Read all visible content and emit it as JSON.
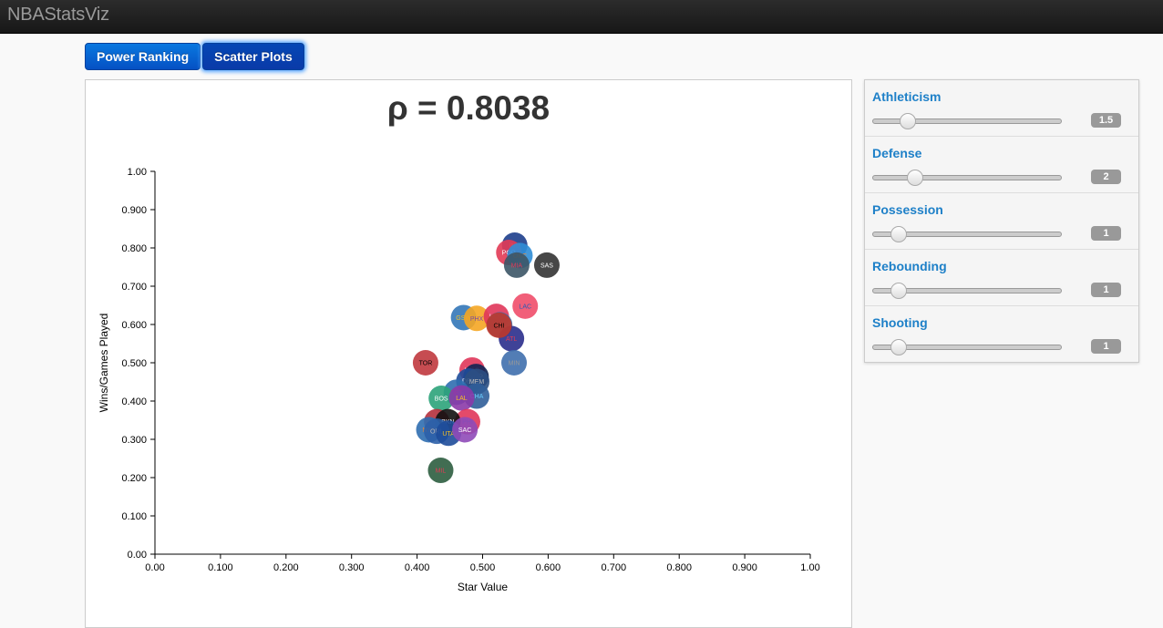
{
  "app": {
    "brand": "NBAStatsViz"
  },
  "tabs": [
    {
      "label": "Power Ranking",
      "active": false
    },
    {
      "label": "Scatter Plots",
      "active": true
    }
  ],
  "correlation_text": "ρ = 0.8038",
  "sliders": [
    {
      "label": "Athleticism",
      "value": "1.5",
      "fraction": 0.18
    },
    {
      "label": "Defense",
      "value": "2",
      "fraction": 0.22
    },
    {
      "label": "Possession",
      "value": "1",
      "fraction": 0.13
    },
    {
      "label": "Rebounding",
      "value": "1",
      "fraction": 0.13
    },
    {
      "label": "Shooting",
      "value": "1",
      "fraction": 0.13
    }
  ],
  "chart_data": {
    "type": "scatter",
    "xlabel": "Star Value",
    "ylabel": "Wins/Games Played",
    "xlim": [
      0,
      1
    ],
    "ylim": [
      0,
      1
    ],
    "x_ticks": [
      "0.00",
      "0.100",
      "0.200",
      "0.300",
      "0.400",
      "0.500",
      "0.600",
      "0.700",
      "0.800",
      "0.900",
      "1.00"
    ],
    "y_ticks": [
      "0.00",
      "0.100",
      "0.200",
      "0.300",
      "0.400",
      "0.500",
      "0.600",
      "0.700",
      "0.800",
      "0.900",
      "1.00"
    ],
    "points": [
      {
        "team": "IND",
        "x": 0.549,
        "y": 0.807,
        "color": "#1d3e8c",
        "text": "#f7c022"
      },
      {
        "team": "POR",
        "x": 0.54,
        "y": 0.788,
        "color": "#e23a55",
        "text": "#ffffff"
      },
      {
        "team": "OKC",
        "x": 0.557,
        "y": 0.78,
        "color": "#2f8dd6",
        "text": "#f58426"
      },
      {
        "team": "MIA",
        "x": 0.552,
        "y": 0.755,
        "color": "#3c5566",
        "text": "#e23a55"
      },
      {
        "team": "SAS",
        "x": 0.598,
        "y": 0.755,
        "color": "#333333",
        "text": "#ffffff"
      },
      {
        "team": "LAC",
        "x": 0.565,
        "y": 0.648,
        "color": "#ef4e6a",
        "text": "#2a5cb5"
      },
      {
        "team": "GSW",
        "x": 0.471,
        "y": 0.618,
        "color": "#3377b8",
        "text": "#f7c022"
      },
      {
        "team": "PHX",
        "x": 0.491,
        "y": 0.616,
        "color": "#f5a623",
        "text": "#7b4aa0"
      },
      {
        "team": "HOU",
        "x": 0.521,
        "y": 0.621,
        "color": "#e0365a",
        "text": "#ffffff"
      },
      {
        "team": "DAL",
        "x": 0.526,
        "y": 0.599,
        "color": "#2f6eb0",
        "text": "#bbbbbb"
      },
      {
        "team": "ATL",
        "x": 0.544,
        "y": 0.563,
        "color": "#2a2e8c",
        "text": "#e23a55"
      },
      {
        "team": "MIN",
        "x": 0.548,
        "y": 0.5,
        "color": "#3f6fad",
        "text": "#999999"
      },
      {
        "team": "TOR",
        "x": 0.413,
        "y": 0.5,
        "color": "#c0393e",
        "text": "#000000"
      },
      {
        "team": "WAS",
        "x": 0.484,
        "y": 0.481,
        "color": "#e0365a",
        "text": "#ffffff"
      },
      {
        "team": "NOP",
        "x": 0.49,
        "y": 0.464,
        "color": "#0f2453",
        "text": "#bbbbbb"
      },
      {
        "team": "DEN",
        "x": 0.479,
        "y": 0.452,
        "color": "#1e4d9a",
        "text": "#ffffff"
      },
      {
        "team": "MEM",
        "x": 0.491,
        "y": 0.451,
        "color": "#2c4f82",
        "text": "#bbbbbb"
      },
      {
        "team": "CHA",
        "x": 0.491,
        "y": 0.413,
        "color": "#305e99",
        "text": "#66ccff"
      },
      {
        "team": "DET",
        "x": 0.46,
        "y": 0.423,
        "color": "#2f6eb0",
        "text": "#e23a55"
      },
      {
        "team": "BOS",
        "x": 0.437,
        "y": 0.407,
        "color": "#2ca37a",
        "text": "#ffffff"
      },
      {
        "team": "LAL",
        "x": 0.468,
        "y": 0.408,
        "color": "#8b3aa8",
        "text": "#f7c022"
      },
      {
        "team": "PHI",
        "x": 0.477,
        "y": 0.346,
        "color": "#e0365a",
        "text": "#2a5cb5"
      },
      {
        "team": "CLE",
        "x": 0.43,
        "y": 0.346,
        "color": "#b5303d",
        "text": "#f7c022"
      },
      {
        "team": "BKN",
        "x": 0.447,
        "y": 0.346,
        "color": "#111111",
        "text": "#ffffff"
      },
      {
        "team": "NYK",
        "x": 0.418,
        "y": 0.325,
        "color": "#2f6eb0",
        "text": "#f58426"
      },
      {
        "team": "ORL",
        "x": 0.43,
        "y": 0.321,
        "color": "#2c5fa8",
        "text": "#bbbbbb"
      },
      {
        "team": "UTA",
        "x": 0.448,
        "y": 0.316,
        "color": "#1e4d9a",
        "text": "#f7c022"
      },
      {
        "team": "SAC",
        "x": 0.473,
        "y": 0.325,
        "color": "#8f4ab8",
        "text": "#ffffff"
      },
      {
        "team": "MIL",
        "x": 0.436,
        "y": 0.219,
        "color": "#2c5d3f",
        "text": "#e23a55"
      },
      {
        "team": "CHI",
        "x": 0.525,
        "y": 0.598,
        "color": "#c0392b",
        "text": "#000000"
      }
    ]
  }
}
